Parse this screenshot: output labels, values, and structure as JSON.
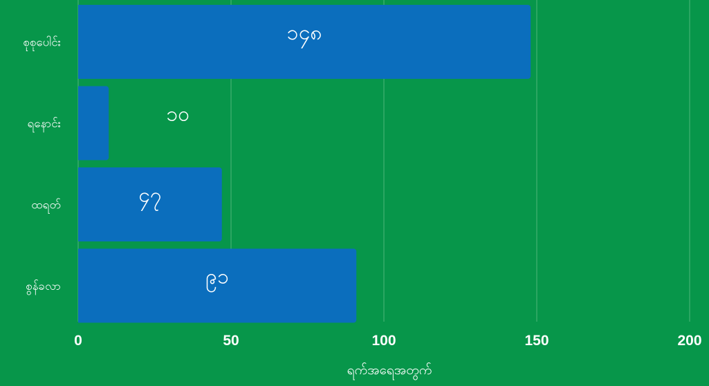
{
  "chart_data": {
    "type": "bar",
    "orientation": "horizontal",
    "categories": [
      "စုစုပေါင်း",
      "ရနောင်း",
      "ထရတ်",
      "စွန်ခလာ"
    ],
    "values": [
      148,
      10,
      47,
      91
    ],
    "data_labels": [
      "၁၄၈",
      "၁၀",
      "၄၇",
      "၉၁"
    ],
    "xlim": [
      0,
      200
    ],
    "xticks": [
      0,
      50,
      100,
      150,
      200
    ],
    "xtick_labels": [
      "0",
      "50",
      "100",
      "150",
      "200"
    ],
    "xlabel": "ရက်အရေအတွက်",
    "ylabel": "",
    "title": "",
    "grid": true,
    "legend": "none",
    "colors": {
      "background": "#07964a",
      "bar": "#0b6ebd",
      "grid": "#4fb77a",
      "text": "#ffffff"
    }
  }
}
